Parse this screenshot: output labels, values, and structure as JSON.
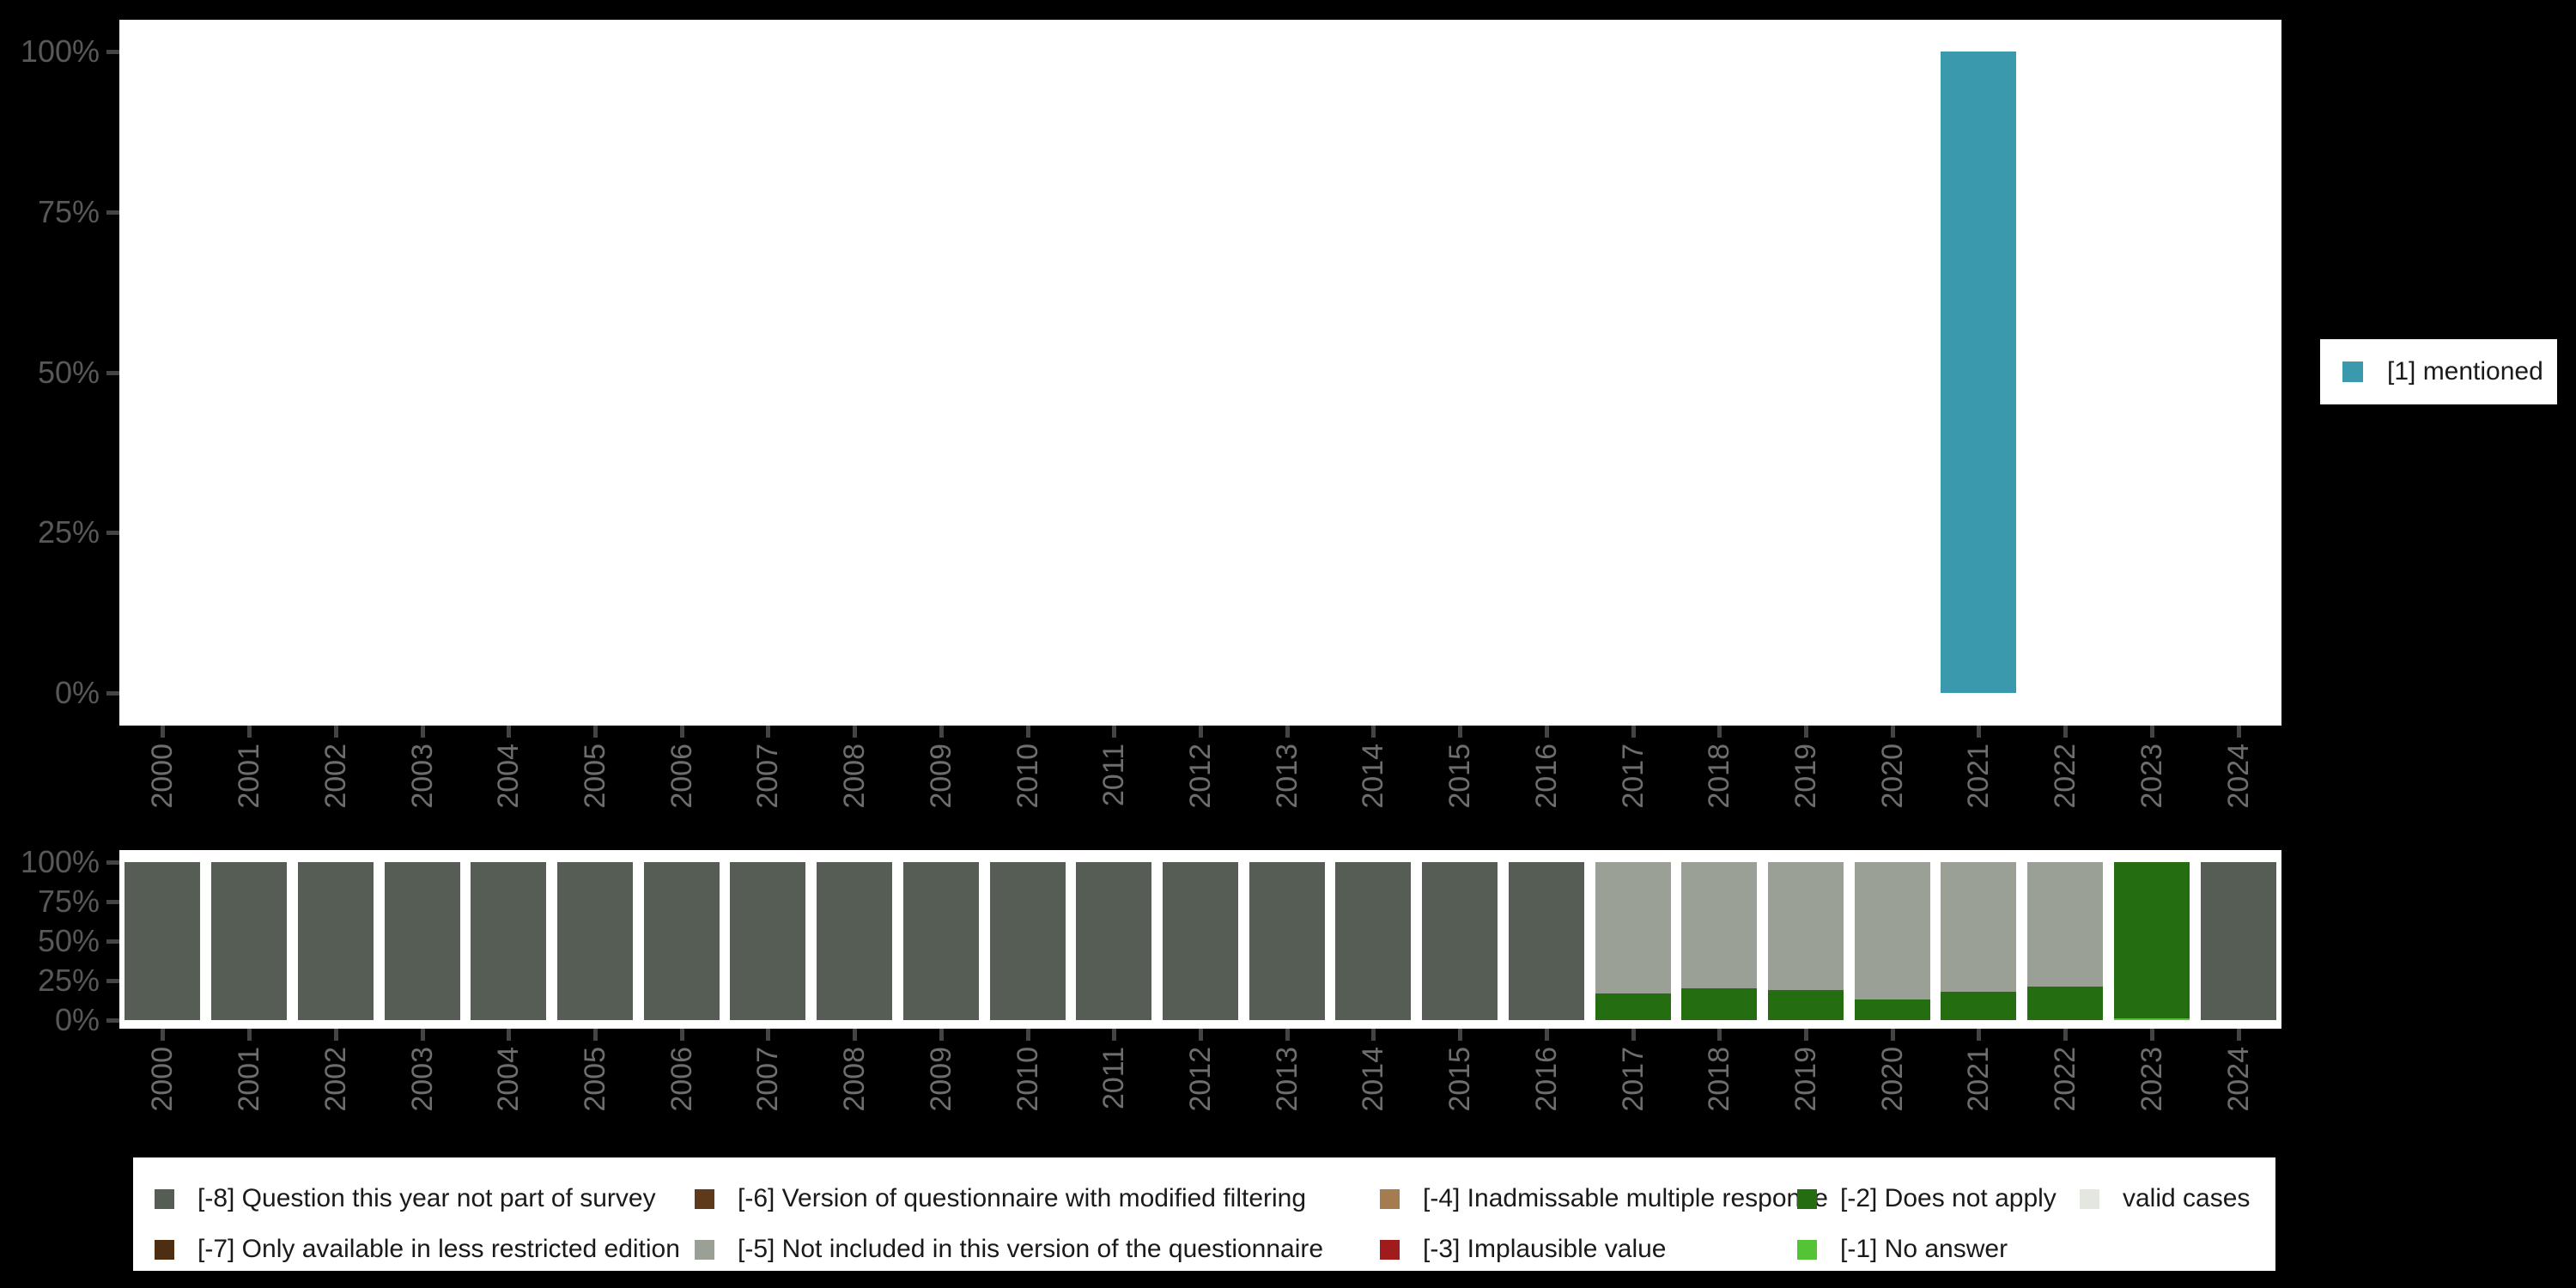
{
  "background_color": "#000000",
  "panel_color": "#ffffff",
  "axis": {
    "y_tick_labels": [
      "0%",
      "25%",
      "50%",
      "75%",
      "100%"
    ],
    "pct_label_color": "#585858",
    "year_label_color": "#6e6e6e",
    "tick_color": "#444444"
  },
  "legend_right": {
    "items": [
      {
        "label": "[1] mentioned",
        "color": "#3b99ad"
      }
    ]
  },
  "legend_bottom": {
    "items": [
      {
        "label": "[-8] Question this year not part of survey",
        "color": "#555d54"
      },
      {
        "label": "[-7] Only available in less restricted edition",
        "color": "#4e2e10"
      },
      {
        "label": "[-6] Version of questionnaire with modified filtering",
        "color": "#5e3a1a"
      },
      {
        "label": "[-5] Not included in this version of the questionnaire",
        "color": "#9aa096"
      },
      {
        "label": "[-4] Inadmissable multiple response",
        "color": "#a57b50"
      },
      {
        "label": "[-3] Implausible value",
        "color": "#a01c1c"
      },
      {
        "label": "[-2] Does not apply",
        "color": "#246e11"
      },
      {
        "label": "[-1] No answer",
        "color": "#54c436"
      },
      {
        "label": "valid cases",
        "color": "#e3e7e0"
      }
    ]
  },
  "chart_data": [
    {
      "type": "bar",
      "title": "",
      "xlabel": "",
      "ylabel": "",
      "ylim": [
        0,
        100
      ],
      "yticks": [
        0,
        25,
        50,
        75,
        100
      ],
      "grid": false,
      "legend_position": "right",
      "x": [
        2000,
        2001,
        2002,
        2003,
        2004,
        2005,
        2006,
        2007,
        2008,
        2009,
        2010,
        2011,
        2012,
        2013,
        2014,
        2015,
        2016,
        2017,
        2018,
        2019,
        2020,
        2021,
        2022,
        2023,
        2024
      ],
      "series": [
        {
          "name": "[1] mentioned",
          "color": "#3b99ad",
          "values": [
            0,
            0,
            0,
            0,
            0,
            0,
            0,
            0,
            0,
            0,
            0,
            0,
            0,
            0,
            0,
            0,
            0,
            0,
            0,
            0,
            0,
            100,
            0,
            0,
            0
          ]
        }
      ]
    },
    {
      "type": "bar",
      "subtype": "stacked",
      "title": "",
      "xlabel": "",
      "ylabel": "",
      "ylim": [
        0,
        100
      ],
      "yticks": [
        0,
        25,
        50,
        75,
        100
      ],
      "grid": false,
      "legend_position": "bottom",
      "x": [
        2000,
        2001,
        2002,
        2003,
        2004,
        2005,
        2006,
        2007,
        2008,
        2009,
        2010,
        2011,
        2012,
        2013,
        2014,
        2015,
        2016,
        2017,
        2018,
        2019,
        2020,
        2021,
        2022,
        2023,
        2024
      ],
      "series": [
        {
          "name": "[-8] Question this year not part of survey",
          "color": "#555d54",
          "values": [
            100,
            100,
            100,
            100,
            100,
            100,
            100,
            100,
            100,
            100,
            100,
            100,
            100,
            100,
            100,
            100,
            100,
            0,
            0,
            0,
            0,
            0,
            0,
            0,
            100
          ]
        },
        {
          "name": "[-5] Not included in this version of the questionnaire",
          "color": "#9aa096",
          "values": [
            0,
            0,
            0,
            0,
            0,
            0,
            0,
            0,
            0,
            0,
            0,
            0,
            0,
            0,
            0,
            0,
            0,
            83,
            80,
            81,
            87,
            82,
            79,
            0,
            0
          ]
        },
        {
          "name": "[-2] Does not apply",
          "color": "#246e11",
          "values": [
            0,
            0,
            0,
            0,
            0,
            0,
            0,
            0,
            0,
            0,
            0,
            0,
            0,
            0,
            0,
            0,
            0,
            17,
            20,
            19,
            13,
            18,
            21,
            99,
            0
          ]
        },
        {
          "name": "[-1] No answer",
          "color": "#54c436",
          "values": [
            0,
            0,
            0,
            0,
            0,
            0,
            0,
            0,
            0,
            0,
            0,
            0,
            0,
            0,
            0,
            0,
            0,
            0,
            0,
            0,
            0,
            0,
            0,
            1,
            0
          ]
        }
      ]
    }
  ]
}
